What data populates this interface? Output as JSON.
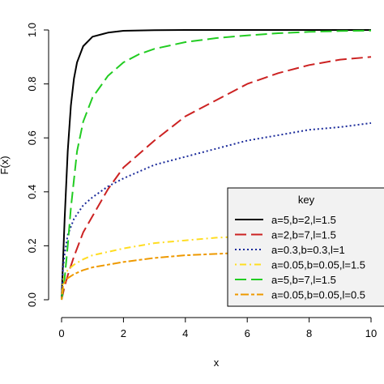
{
  "chart_data": {
    "type": "line",
    "xlabel": "x",
    "ylabel": "F(x)",
    "xlim": [
      0,
      10
    ],
    "ylim": [
      0,
      1
    ],
    "x_ticks": [
      0,
      2,
      4,
      6,
      8,
      10
    ],
    "x_tick_labels": [
      "0",
      "2",
      "4",
      "6",
      "8",
      "10"
    ],
    "y_ticks": [
      0,
      0.2,
      0.4,
      0.6,
      0.8,
      1.0
    ],
    "y_tick_labels": [
      "0.0",
      "0.2",
      "0.4",
      "0.6",
      "0.8",
      "1.0"
    ],
    "grid": false,
    "legend": {
      "title": "key",
      "placement": "bottom-right"
    },
    "series": [
      {
        "name": "a=5,b=2,l=1.5",
        "color": "#000000",
        "dash": "solid",
        "x": [
          0,
          0.1,
          0.2,
          0.3,
          0.4,
          0.5,
          0.7,
          1.0,
          1.5,
          2,
          3,
          4,
          6,
          8,
          10
        ],
        "y": [
          0,
          0.3,
          0.55,
          0.72,
          0.82,
          0.88,
          0.94,
          0.975,
          0.99,
          0.997,
          0.999,
          1.0,
          1.0,
          1.0,
          1.0
        ]
      },
      {
        "name": "a=2,b=7,l=1.5",
        "color": "#cc2222",
        "dash": "longdash",
        "x": [
          0,
          0.1,
          0.2,
          0.4,
          0.7,
          1.0,
          1.5,
          2,
          3,
          4,
          5,
          6,
          7,
          8,
          9,
          10
        ],
        "y": [
          0,
          0.05,
          0.09,
          0.16,
          0.25,
          0.31,
          0.41,
          0.49,
          0.59,
          0.68,
          0.74,
          0.8,
          0.84,
          0.87,
          0.89,
          0.9
        ]
      },
      {
        "name": "a=0.3,b=0.3,l=1",
        "color": "#1a2a9a",
        "dash": "dotted",
        "x": [
          0,
          0.05,
          0.1,
          0.2,
          0.4,
          0.7,
          1.0,
          1.5,
          2,
          3,
          4,
          5,
          6,
          7,
          8,
          9,
          10
        ],
        "y": [
          0,
          0.12,
          0.17,
          0.24,
          0.3,
          0.35,
          0.38,
          0.42,
          0.45,
          0.5,
          0.53,
          0.56,
          0.59,
          0.61,
          0.63,
          0.64,
          0.655
        ]
      },
      {
        "name": "a=0.05,b=0.05,l=1.5",
        "color": "#ffdd22",
        "dash": "dotdash",
        "x": [
          0,
          0.05,
          0.1,
          0.2,
          0.4,
          0.7,
          1.0,
          2,
          3,
          4,
          5,
          6,
          7,
          8,
          9,
          10
        ],
        "y": [
          0,
          0.07,
          0.09,
          0.11,
          0.13,
          0.15,
          0.165,
          0.19,
          0.21,
          0.22,
          0.23,
          0.235,
          0.24,
          0.245,
          0.25,
          0.255
        ]
      },
      {
        "name": "a=5,b=7,l=1.5",
        "color": "#22cc22",
        "dash": "longdash",
        "x": [
          0,
          0.1,
          0.2,
          0.3,
          0.5,
          0.7,
          1.0,
          1.5,
          2,
          2.5,
          3,
          4,
          5,
          6,
          7,
          8,
          9,
          10
        ],
        "y": [
          0,
          0.08,
          0.2,
          0.34,
          0.55,
          0.66,
          0.75,
          0.83,
          0.88,
          0.91,
          0.93,
          0.955,
          0.97,
          0.98,
          0.988,
          0.993,
          0.996,
          0.998
        ]
      },
      {
        "name": "a=0.05,b=0.05,l=0.5",
        "color": "#ee9900",
        "dash": "twodash",
        "x": [
          0,
          0.05,
          0.1,
          0.2,
          0.4,
          0.7,
          1.0,
          2,
          3,
          4,
          5,
          6,
          7,
          8,
          9,
          10
        ],
        "y": [
          0,
          0.05,
          0.065,
          0.08,
          0.095,
          0.11,
          0.12,
          0.14,
          0.155,
          0.165,
          0.17,
          0.175,
          0.18,
          0.185,
          0.19,
          0.195
        ]
      }
    ]
  }
}
